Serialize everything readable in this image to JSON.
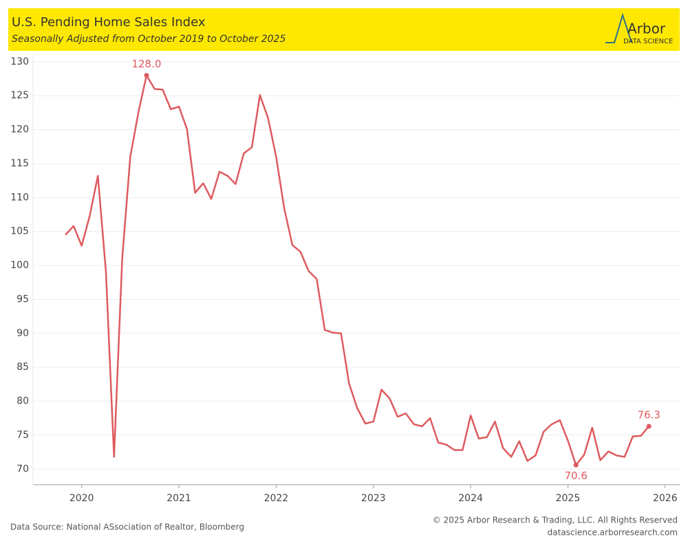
{
  "chart_data": {
    "type": "line",
    "title": "U.S. Pending Home Sales Index",
    "subtitle": "Seasonally Adjusted from October 2019 to October 2025",
    "logo": {
      "name": "Arbor",
      "tagline": "DATA SCIENCE"
    },
    "source": "Data Source: National ASsociation of Realtor, Bloomberg",
    "copyright": "© 2025 Arbor Research & Trading, LLC. All Rights Reserved",
    "website": "datascience.arborresearch.com",
    "x": [
      2019.833,
      2019.917,
      2020,
      2020.083,
      2020.167,
      2020.25,
      2020.333,
      2020.417,
      2020.5,
      2020.583,
      2020.667,
      2020.75,
      2020.833,
      2020.917,
      2021,
      2021.083,
      2021.167,
      2021.25,
      2021.333,
      2021.417,
      2021.5,
      2021.583,
      2021.667,
      2021.75,
      2021.833,
      2021.917,
      2022,
      2022.083,
      2022.167,
      2022.25,
      2022.333,
      2022.417,
      2022.5,
      2022.583,
      2022.667,
      2022.75,
      2022.833,
      2022.917,
      2023,
      2023.083,
      2023.167,
      2023.25,
      2023.333,
      2023.417,
      2023.5,
      2023.583,
      2023.667,
      2023.75,
      2023.833,
      2023.917,
      2024,
      2024.083,
      2024.167,
      2024.25,
      2024.333,
      2024.417,
      2024.5,
      2024.583,
      2024.667,
      2024.75,
      2024.833,
      2024.917,
      2025,
      2025.083,
      2025.167,
      2025.25,
      2025.333,
      2025.417,
      2025.5,
      2025.583,
      2025.667,
      2025.75,
      2025.833
    ],
    "series": [
      {
        "name": "Pending Home Sales Index",
        "color": "#de5a5e",
        "values": [
          104.5,
          105.8,
          102.9,
          107.3,
          113.2,
          99,
          71.8,
          101,
          116,
          122.5,
          128.0,
          126.0,
          125.9,
          123.0,
          123.4,
          120.1,
          110.7,
          112.1,
          109.8,
          113.8,
          113.2,
          112.0,
          116.5,
          117.4,
          125.1,
          121.7,
          116.0,
          108.4,
          103.0,
          102.0,
          99.2,
          98.0,
          90.5,
          90.1,
          90.0,
          82.6,
          79.0,
          76.7,
          77.0,
          81.7,
          80.4,
          77.7,
          78.2,
          76.6,
          76.3,
          77.5,
          73.9,
          73.6,
          72.8,
          72.8,
          77.9,
          74.5,
          74.7,
          77.0,
          73.1,
          71.8,
          74.1,
          71.2,
          72.0,
          75.5,
          76.6,
          77.2,
          74.2,
          70.6,
          72.1,
          76.1,
          71.3,
          72.6,
          72.0,
          71.8,
          74.8,
          74.9,
          76.3
        ],
        "value_labels": [
          null,
          null,
          null,
          null,
          null,
          null,
          null,
          null,
          null,
          null,
          "128.0",
          null,
          null,
          null,
          null,
          null,
          null,
          null,
          null,
          null,
          null,
          null,
          null,
          null,
          null,
          null,
          null,
          null,
          null,
          null,
          null,
          null,
          null,
          null,
          null,
          null,
          null,
          null,
          null,
          null,
          null,
          null,
          null,
          null,
          null,
          null,
          null,
          null,
          null,
          null,
          null,
          null,
          null,
          null,
          null,
          null,
          null,
          null,
          null,
          null,
          null,
          null,
          null,
          "70.6",
          null,
          null,
          null,
          null,
          null,
          null,
          null,
          null,
          "76.3"
        ]
      }
    ],
    "xlim": [
      2019.5,
      2026.15
    ],
    "xticks": [
      2020,
      2021,
      2022,
      2023,
      2024,
      2025,
      2026
    ],
    "ylim": [
      67.7,
      131
    ],
    "yticks": [
      70,
      75,
      80,
      85,
      90,
      95,
      100,
      105,
      110,
      115,
      120,
      125,
      130
    ],
    "grid": true,
    "header_color": "#ffe800"
  }
}
